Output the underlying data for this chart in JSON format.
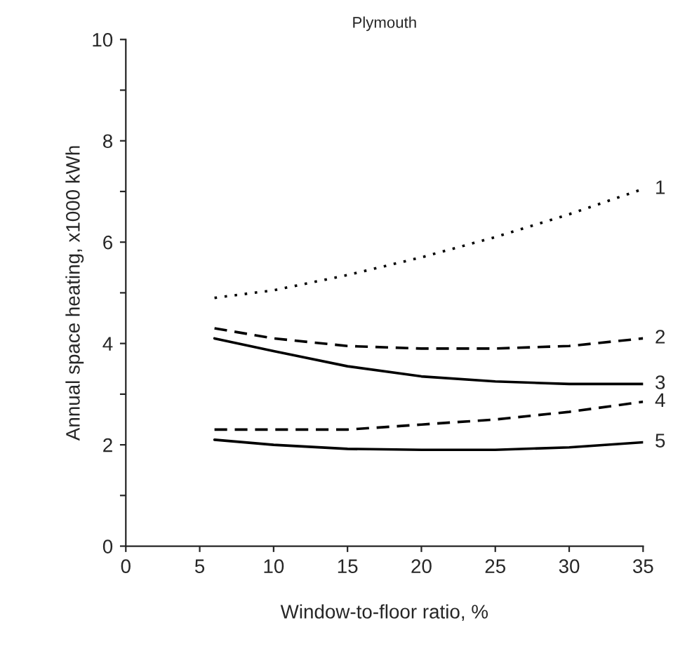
{
  "chart_data": {
    "type": "line",
    "title": "Plymouth",
    "xlabel": "Window-to-floor ratio, %",
    "ylabel": "Annual space heating, x1000 kWh",
    "x": [
      6,
      10,
      15,
      20,
      25,
      30,
      35
    ],
    "series": [
      {
        "name": "1",
        "color": "#000000",
        "line_style": "dotted",
        "values": [
          4.9,
          5.05,
          5.35,
          5.7,
          6.1,
          6.55,
          7.05
        ]
      },
      {
        "name": "2",
        "color": "#000000",
        "line_style": "dashed",
        "values": [
          4.3,
          4.1,
          3.95,
          3.9,
          3.9,
          3.95,
          4.1
        ]
      },
      {
        "name": "3",
        "color": "#000000",
        "line_style": "solid",
        "values": [
          4.1,
          3.85,
          3.55,
          3.35,
          3.25,
          3.2,
          3.2
        ]
      },
      {
        "name": "4",
        "color": "#000000",
        "line_style": "dashed",
        "values": [
          2.3,
          2.3,
          2.3,
          2.4,
          2.5,
          2.65,
          2.85
        ]
      },
      {
        "name": "5",
        "color": "#000000",
        "line_style": "solid",
        "values": [
          2.1,
          2.0,
          1.92,
          1.9,
          1.9,
          1.95,
          2.05
        ]
      }
    ],
    "xlim": [
      0,
      35
    ],
    "xticks": [
      0,
      5,
      10,
      15,
      20,
      25,
      30,
      35
    ],
    "ylim": [
      0,
      10
    ],
    "yticks": [
      0,
      {
        "value": 1,
        "label": null
      },
      2,
      {
        "value": 3,
        "label": null
      },
      4,
      {
        "value": 5,
        "label": null
      },
      6,
      {
        "value": 7,
        "label": null
      },
      8,
      {
        "value": 9,
        "label": null
      },
      10
    ],
    "grid": false,
    "legend": false,
    "marker": "none"
  }
}
